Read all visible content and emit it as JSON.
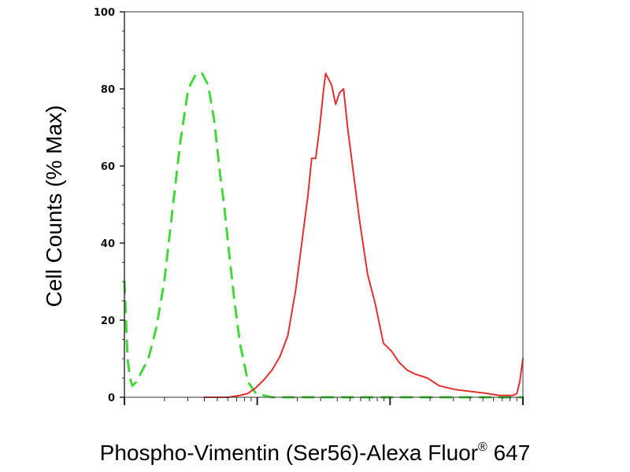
{
  "chart_data": {
    "type": "line",
    "xlabel": "Phospho-Vimentin (Ser56)-Alexa Fluor",
    "xlabel_superscript": "®",
    "xlabel_suffix": " 647",
    "ylabel": "Cell Counts (% Max)",
    "x_scale": "log",
    "xlim": [
      0,
      1
    ],
    "ylim": [
      0,
      100
    ],
    "yticks": [
      0,
      20,
      40,
      60,
      80,
      100
    ],
    "yticklabels": [
      "0",
      "20",
      "40",
      "60",
      "80",
      "100"
    ],
    "grid": false,
    "legend": "none",
    "series": [
      {
        "style": "dashed",
        "color": "#44d63a",
        "x": [
          0.0,
          0.004,
          0.008,
          0.014,
          0.02,
          0.03,
          0.045,
          0.06,
          0.08,
          0.1,
          0.12,
          0.14,
          0.16,
          0.18,
          0.195,
          0.21,
          0.225,
          0.24,
          0.25,
          0.26,
          0.275,
          0.29,
          0.31,
          0.33,
          0.35,
          0.37,
          0.39,
          0.41,
          0.43,
          0.46,
          0.56,
          0.7,
          0.84,
          1.0
        ],
        "y": [
          30,
          20,
          10,
          5,
          3,
          4,
          7,
          10,
          18,
          30,
          48,
          66,
          80,
          84,
          84,
          81,
          72,
          58,
          50,
          40,
          26,
          14,
          4,
          1,
          0.5,
          0,
          0,
          0,
          0,
          0,
          0,
          0,
          0,
          0
        ]
      },
      {
        "style": "solid",
        "color": "#e03030",
        "x": [
          0.2,
          0.23,
          0.26,
          0.29,
          0.31,
          0.33,
          0.35,
          0.37,
          0.39,
          0.41,
          0.43,
          0.445,
          0.46,
          0.47,
          0.48,
          0.49,
          0.5,
          0.505,
          0.51,
          0.52,
          0.53,
          0.54,
          0.55,
          0.56,
          0.575,
          0.59,
          0.61,
          0.63,
          0.65,
          0.67,
          0.69,
          0.71,
          0.73,
          0.76,
          0.79,
          0.83,
          0.87,
          0.91,
          0.94,
          0.96,
          0.975,
          0.985,
          0.992,
          1.0
        ],
        "y": [
          0,
          0,
          0,
          0.5,
          1,
          2.5,
          4.5,
          7,
          10.5,
          16,
          28,
          40,
          52,
          62,
          62,
          70,
          80,
          84,
          83,
          81,
          76,
          79,
          80,
          70,
          58,
          46,
          32,
          24,
          14,
          12,
          9,
          7,
          6,
          5,
          3,
          2,
          1.5,
          1,
          0.5,
          0.5,
          0.5,
          1,
          4,
          10
        ]
      }
    ]
  }
}
